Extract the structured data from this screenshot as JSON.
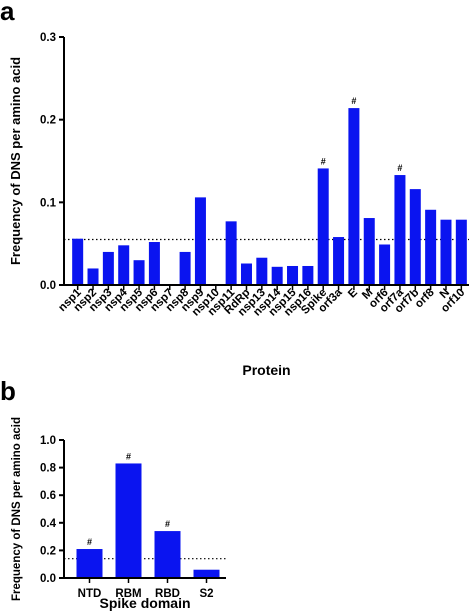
{
  "panels": {
    "a": {
      "letter": "a"
    },
    "b": {
      "letter": "b"
    }
  },
  "colors": {
    "bar": "#0a14f0",
    "axis": "#000000",
    "refline": "#000000"
  },
  "chart_data": [
    {
      "type": "bar",
      "title": "",
      "xlabel": "Protein",
      "ylabel": "Frequency of DNS per amino acid",
      "ylim": [
        0,
        0.3
      ],
      "yticks": [
        "0.0",
        "0.1",
        "0.2",
        "0.3"
      ],
      "categories": [
        "nsp1",
        "nsp2",
        "nsp3",
        "nsp4",
        "nsp5",
        "nsp6",
        "nsp7",
        "nsp8",
        "nsp9",
        "nsp10",
        "nsp11",
        "RdRp",
        "nsp13",
        "nsp14",
        "nsp15",
        "nsp16",
        "Spike",
        "orf3a",
        "E",
        "M",
        "orf6",
        "orf7a",
        "orf7b",
        "orf8",
        "N",
        "orf10"
      ],
      "values": [
        0.056,
        0.02,
        0.04,
        0.048,
        0.03,
        0.052,
        0.0,
        0.04,
        0.106,
        0.0,
        0.077,
        0.026,
        0.033,
        0.022,
        0.023,
        0.023,
        0.141,
        0.058,
        0.214,
        0.081,
        0.049,
        0.133,
        0.116,
        0.091,
        0.079,
        0.079
      ],
      "annotations": [
        {
          "category": "Spike",
          "text": "#"
        },
        {
          "category": "E",
          "text": "#"
        },
        {
          "category": "orf7a",
          "text": "#"
        }
      ],
      "reference_line": 0.055,
      "grid": false,
      "legend": "none"
    },
    {
      "type": "bar",
      "title": "",
      "xlabel": "Spike domain",
      "ylabel": "Frequency of DNS per amino acid",
      "ylim": [
        0,
        1.0
      ],
      "yticks": [
        "0.0",
        "0.2",
        "0.4",
        "0.6",
        "0.8",
        "1.0"
      ],
      "categories": [
        "NTD",
        "RBM",
        "RBD",
        "S2"
      ],
      "values": [
        0.21,
        0.83,
        0.34,
        0.06
      ],
      "annotations": [
        {
          "category": "NTD",
          "text": "#"
        },
        {
          "category": "RBM",
          "text": "#"
        },
        {
          "category": "RBD",
          "text": "#"
        }
      ],
      "reference_line": 0.14,
      "grid": false,
      "legend": "none"
    }
  ]
}
